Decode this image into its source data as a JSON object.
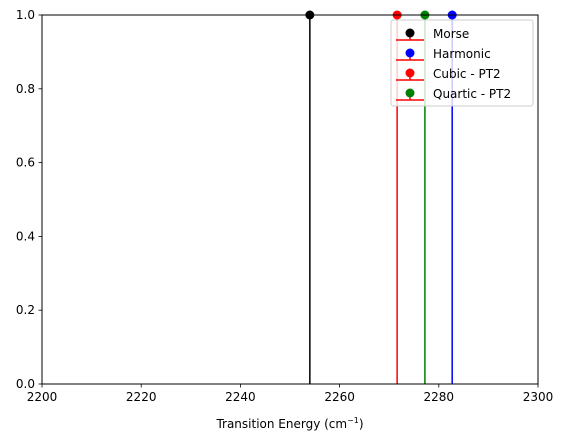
{
  "chart_data": {
    "type": "stem",
    "xlabel_prefix": "Transition Energy (cm",
    "xlabel_sup": "−1",
    "xlabel_suffix": ")",
    "ylabel": "",
    "xlim": [
      2200,
      2300
    ],
    "ylim": [
      0.0,
      1.0
    ],
    "x_ticks": [
      2200,
      2220,
      2240,
      2260,
      2280,
      2300
    ],
    "y_ticks": [
      0.0,
      0.2,
      0.4,
      0.6,
      0.8,
      1.0
    ],
    "x_tick_labels": [
      "2200",
      "2220",
      "2240",
      "2260",
      "2280",
      "2300"
    ],
    "y_tick_labels": [
      "0.0",
      "0.2",
      "0.4",
      "0.6",
      "0.8",
      "1.0"
    ],
    "grid": false,
    "legend_position": "top-right",
    "series": [
      {
        "name": "Morse",
        "x": 2254,
        "y": 1.0,
        "marker_color": "#000000",
        "stem_color": "#000000",
        "legend_line_color": "#ff0000"
      },
      {
        "name": "Harmonic",
        "x": 2282.7,
        "y": 1.0,
        "marker_color": "#0000ff",
        "stem_color": "#0000ff",
        "legend_line_color": "#ff0000"
      },
      {
        "name": "Cubic - PT2",
        "x": 2271.6,
        "y": 1.0,
        "marker_color": "#ff0000",
        "stem_color": "#ff0000",
        "legend_line_color": "#ff0000"
      },
      {
        "name": "Quartic - PT2",
        "x": 2277.2,
        "y": 1.0,
        "marker_color": "#008000",
        "stem_color": "#008000",
        "legend_line_color": "#ff0000"
      }
    ]
  }
}
